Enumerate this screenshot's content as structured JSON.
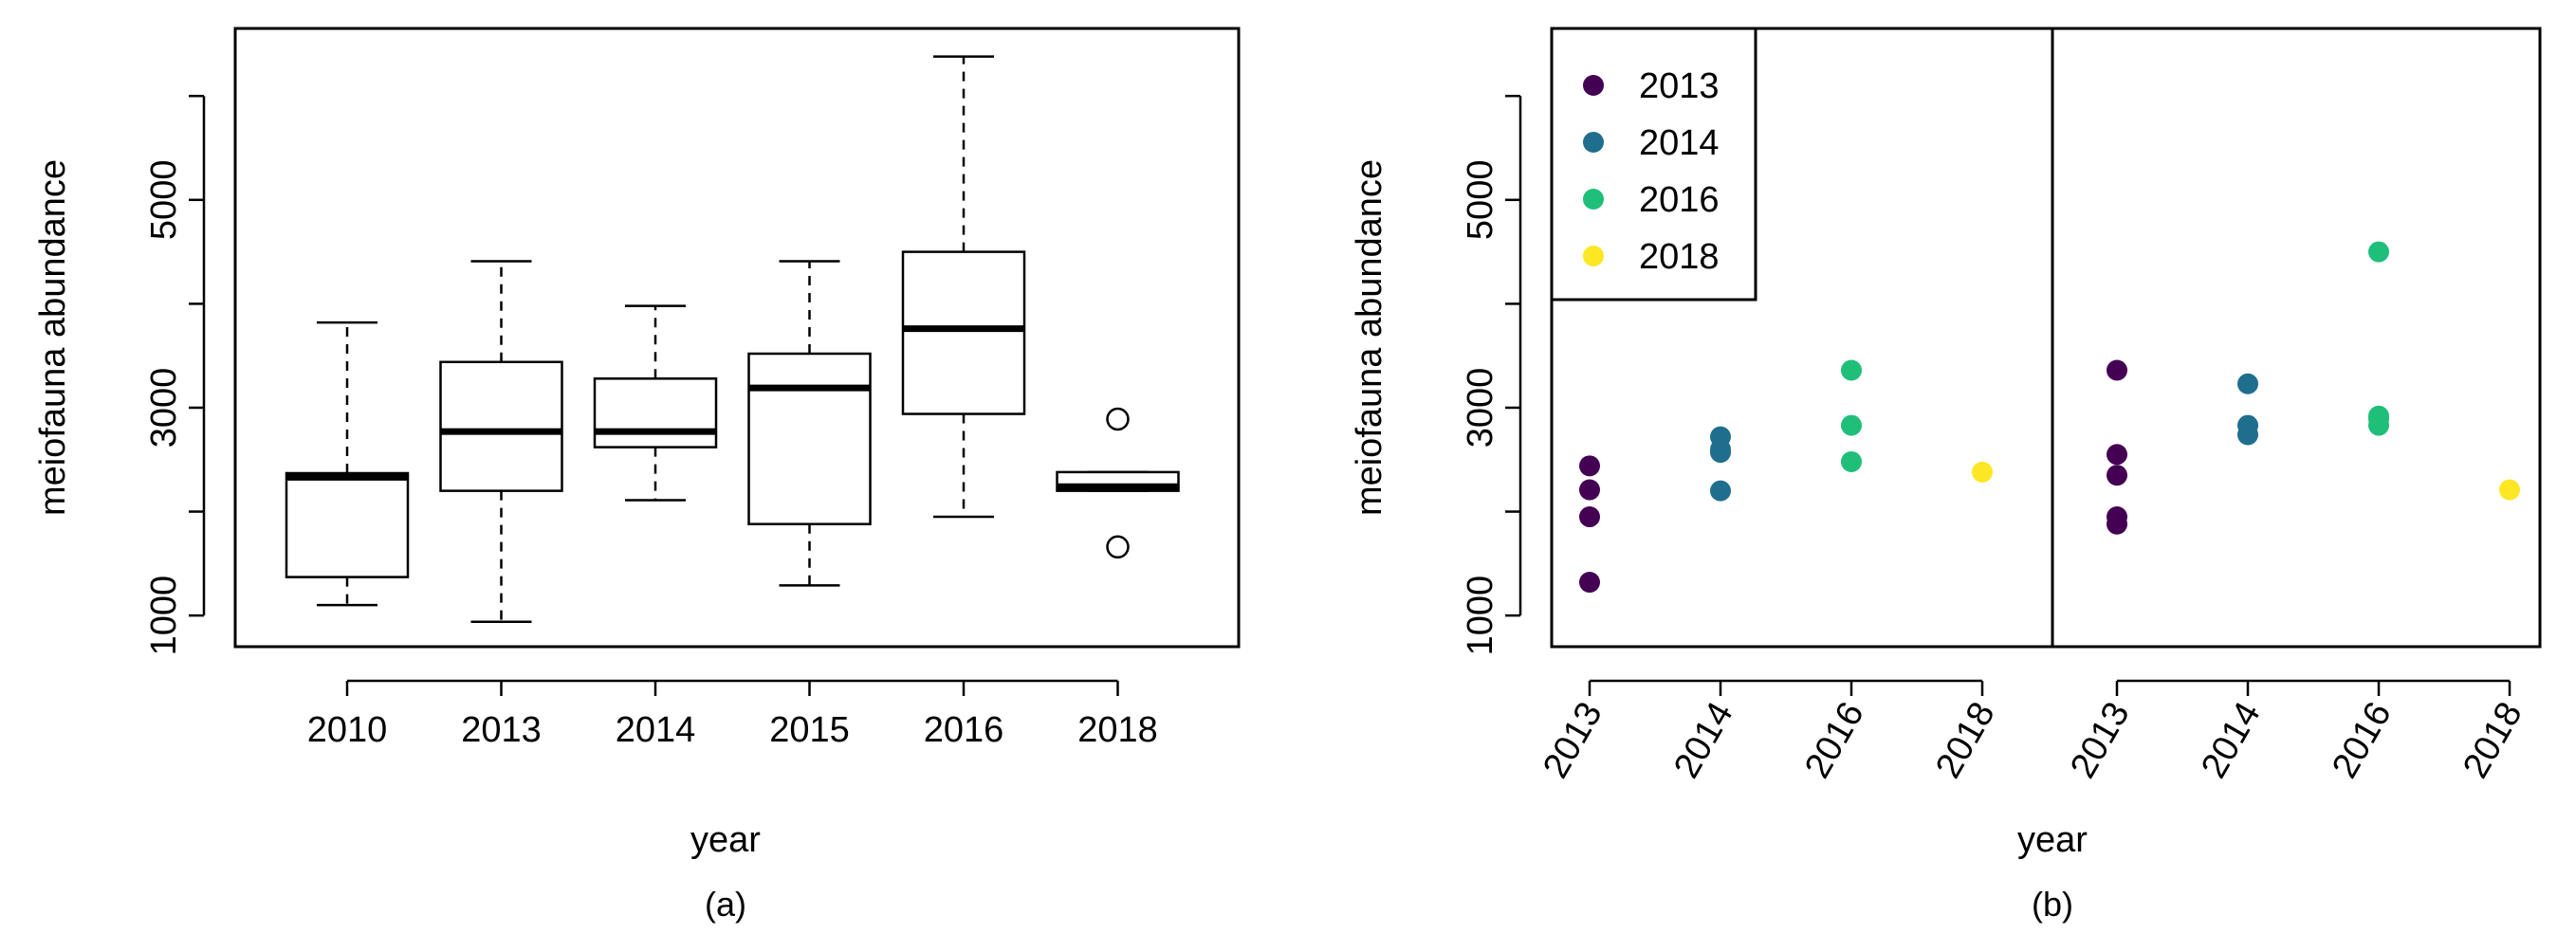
{
  "chart_data": [
    {
      "panel": "(a)",
      "type": "boxplot",
      "xlabel": "year",
      "ylabel": "meiofauna abundance",
      "ylim": [
        700,
        6650
      ],
      "yticks": [
        1000,
        3000,
        5000
      ],
      "categories": [
        "2010",
        "2013",
        "2014",
        "2015",
        "2016",
        "2018"
      ],
      "boxes": [
        {
          "category": "2010",
          "whisker_low": 1100,
          "q1": 1370,
          "median": 2330,
          "q3": 2370,
          "whisker_high": 3820,
          "outliers": []
        },
        {
          "category": "2013",
          "whisker_low": 940,
          "q1": 2200,
          "median": 2770,
          "q3": 3440,
          "whisker_high": 4410,
          "outliers": []
        },
        {
          "category": "2014",
          "whisker_low": 2110,
          "q1": 2620,
          "median": 2770,
          "q3": 3280,
          "whisker_high": 3980,
          "outliers": []
        },
        {
          "category": "2015",
          "whisker_low": 1290,
          "q1": 1880,
          "median": 3190,
          "q3": 3520,
          "whisker_high": 4410,
          "outliers": []
        },
        {
          "category": "2016",
          "whisker_low": 1950,
          "q1": 2940,
          "median": 3760,
          "q3": 4500,
          "whisker_high": 6380,
          "outliers": []
        },
        {
          "category": "2018",
          "whisker_low": 2200,
          "q1": 2200,
          "median": 2240,
          "q3": 2380,
          "whisker_high": 2380,
          "outliers": [
            2890,
            1660
          ]
        }
      ]
    },
    {
      "panel": "(b)",
      "type": "scatter",
      "xlabel": "year",
      "ylabel": "meiofauna abundance",
      "ylim": [
        700,
        6650
      ],
      "yticks": [
        1000,
        3000,
        5000
      ],
      "facets": [
        {
          "categories": [
            "2013",
            "2014",
            "2016",
            "2018"
          ],
          "points": [
            {
              "x": "2013",
              "y": 2440
            },
            {
              "x": "2013",
              "y": 2210
            },
            {
              "x": "2013",
              "y": 1950
            },
            {
              "x": "2013",
              "y": 1320
            },
            {
              "x": "2014",
              "y": 2720
            },
            {
              "x": "2014",
              "y": 2600
            },
            {
              "x": "2014",
              "y": 2570
            },
            {
              "x": "2014",
              "y": 2200
            },
            {
              "x": "2016",
              "y": 3360
            },
            {
              "x": "2016",
              "y": 2830
            },
            {
              "x": "2016",
              "y": 2480
            },
            {
              "x": "2018",
              "y": 2380
            }
          ]
        },
        {
          "categories": [
            "2013",
            "2014",
            "2016",
            "2018"
          ],
          "points": [
            {
              "x": "2013",
              "y": 3360
            },
            {
              "x": "2013",
              "y": 2550
            },
            {
              "x": "2013",
              "y": 2350
            },
            {
              "x": "2013",
              "y": 1950
            },
            {
              "x": "2013",
              "y": 1880
            },
            {
              "x": "2014",
              "y": 3230
            },
            {
              "x": "2014",
              "y": 2830
            },
            {
              "x": "2014",
              "y": 2740
            },
            {
              "x": "2016",
              "y": 4500
            },
            {
              "x": "2016",
              "y": 2920
            },
            {
              "x": "2016",
              "y": 2890
            },
            {
              "x": "2016",
              "y": 2830
            },
            {
              "x": "2018",
              "y": 2210
            }
          ]
        }
      ],
      "legend": {
        "placement": "top-left",
        "entries": [
          {
            "label": "2013",
            "color": "#440154"
          },
          {
            "label": "2014",
            "color": "#1f6e8e"
          },
          {
            "label": "2016",
            "color": "#1fbf7a"
          },
          {
            "label": "2018",
            "color": "#fde725"
          }
        ]
      }
    }
  ]
}
